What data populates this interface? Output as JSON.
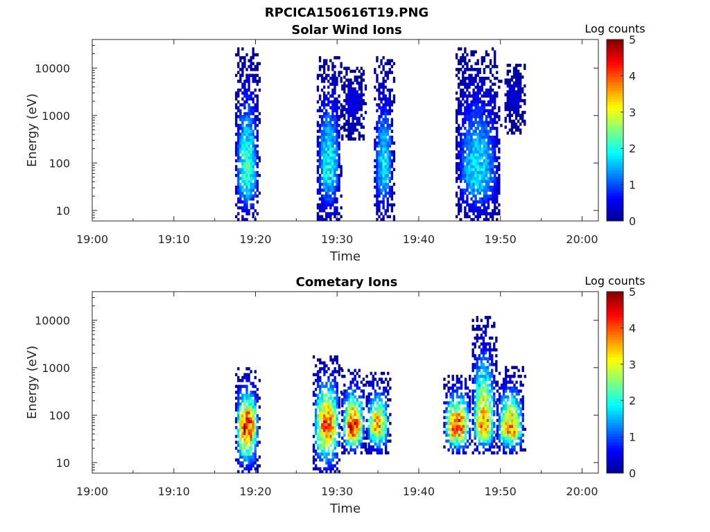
{
  "figure_title": "RPCICA150616T19.PNG",
  "colors": {
    "colormap": [
      "#00008f",
      "#0000ff",
      "#0080ff",
      "#00ffff",
      "#80ff80",
      "#ffff00",
      "#ff8000",
      "#ff0000",
      "#800000"
    ],
    "axis": "#262626"
  },
  "chart_data": [
    {
      "type": "heatmap",
      "title": "Solar Wind Ions",
      "xlabel": "Time",
      "ylabel": "Energy (eV)",
      "xlim": [
        "19:00",
        "20:02"
      ],
      "ylim": [
        6,
        40000
      ],
      "yscale": "log",
      "xticks": [
        "19:00",
        "19:10",
        "19:20",
        "19:30",
        "19:40",
        "19:50",
        "20:00"
      ],
      "yticks": [
        "10",
        "100",
        "1000",
        "10000"
      ],
      "colorbar": {
        "label": "Log counts",
        "min": 0,
        "max": 5,
        "ticks": [
          "0",
          "1",
          "2",
          "3",
          "4",
          "5"
        ]
      },
      "bursts": [
        {
          "start": "19:17.5",
          "end": "19:20.5",
          "emin": 6,
          "emax": 25000,
          "peak_energy": 60,
          "peak_log_counts": 2.2
        },
        {
          "start": "19:27.5",
          "end": "19:30.5",
          "emin": 6,
          "emax": 17000,
          "peak_energy": 80,
          "peak_log_counts": 2.0
        },
        {
          "start": "19:30.5",
          "end": "19:33.5",
          "emin": 300,
          "emax": 10000,
          "peak_energy": 2000,
          "peak_log_counts": 0.5
        },
        {
          "start": "19:34.5",
          "end": "19:37.0",
          "emin": 6,
          "emax": 17000,
          "peak_energy": 80,
          "peak_log_counts": 1.8
        },
        {
          "start": "19:44.5",
          "end": "19:50.0",
          "emin": 6,
          "emax": 25000,
          "peak_energy": 60,
          "peak_log_counts": 1.8
        },
        {
          "start": "19:50.5",
          "end": "19:53.0",
          "emin": 400,
          "emax": 12000,
          "peak_energy": 3000,
          "peak_log_counts": 0.4
        }
      ]
    },
    {
      "type": "heatmap",
      "title": "Cometary Ions",
      "xlabel": "Time",
      "ylabel": "Energy (eV)",
      "xlim": [
        "19:00",
        "20:02"
      ],
      "ylim": [
        6,
        40000
      ],
      "yscale": "log",
      "xticks": [
        "19:00",
        "19:10",
        "19:20",
        "19:30",
        "19:40",
        "19:50",
        "20:00"
      ],
      "yticks": [
        "10",
        "100",
        "1000",
        "10000"
      ],
      "colorbar": {
        "label": "Log counts",
        "min": 0,
        "max": 5,
        "ticks": [
          "0",
          "1",
          "2",
          "3",
          "4",
          "5"
        ]
      },
      "bursts": [
        {
          "start": "19:17.5",
          "end": "19:20.5",
          "emin": 6,
          "emax": 900,
          "peak_energy": 55,
          "peak_log_counts": 4.2
        },
        {
          "start": "19:27.0",
          "end": "19:30.5",
          "emin": 6,
          "emax": 1700,
          "peak_energy": 60,
          "peak_log_counts": 3.9
        },
        {
          "start": "19:30.5",
          "end": "19:33.5",
          "emin": 15,
          "emax": 900,
          "peak_energy": 55,
          "peak_log_counts": 4.2
        },
        {
          "start": "19:33.5",
          "end": "19:36.5",
          "emin": 15,
          "emax": 800,
          "peak_energy": 60,
          "peak_log_counts": 3.5
        },
        {
          "start": "19:43.0",
          "end": "19:46.5",
          "emin": 15,
          "emax": 700,
          "peak_energy": 55,
          "peak_log_counts": 4.2
        },
        {
          "start": "19:46.5",
          "end": "19:49.5",
          "emin": 15,
          "emax": 11000,
          "peak_energy": 60,
          "peak_log_counts": 3.6
        },
        {
          "start": "19:49.5",
          "end": "19:53.0",
          "emin": 15,
          "emax": 1000,
          "peak_energy": 50,
          "peak_log_counts": 3.6
        }
      ]
    }
  ]
}
